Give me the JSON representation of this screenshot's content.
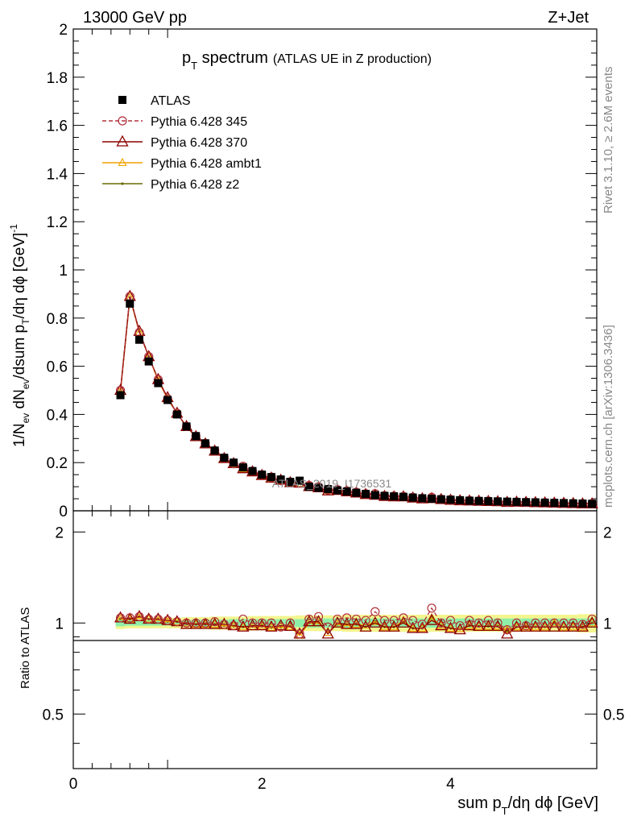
{
  "header": {
    "left": "13000 GeV pp",
    "right": "Z+Jet"
  },
  "side_labels": {
    "rivet": "Rivet 3.1.10, ≥ 2.6M events",
    "mcplots": "mcplots.cern.ch [arXiv:1306.3436]"
  },
  "watermark": "ATLAS_2019_I1736531",
  "colors": {
    "atlas": "#000000",
    "p345": "#b2323c",
    "p370": "#8b0000",
    "ambt1": "#f2a200",
    "z2": "#6b6b00",
    "band_inner": "#8ef0a8",
    "band_outer": "#f4f58e"
  },
  "chart_data": [
    {
      "type": "line",
      "title_main": "p",
      "title_sub": "T",
      "title_rest": " spectrum",
      "title_note": "(ATLAS UE in Z production)",
      "ylabel_parts": [
        "1/N",
        "ev",
        " dN",
        "ev",
        "/dsum p",
        "T",
        "/dη dϕ  [GeV]",
        "-1"
      ],
      "xlim": [
        0,
        5.55
      ],
      "ylim": [
        0,
        2.0
      ],
      "yticks": [
        "0",
        "0.2",
        "0.4",
        "0.6",
        "0.8",
        "1",
        "1.2",
        "1.4",
        "1.6",
        "1.8",
        "2"
      ],
      "legend": [
        "ATLAS",
        "Pythia 6.428 345",
        "Pythia 6.428 370",
        "Pythia 6.428 ambt1",
        "Pythia 6.428 z2"
      ],
      "x": [
        0.5,
        0.6,
        0.7,
        0.8,
        0.9,
        1.0,
        1.1,
        1.2,
        1.3,
        1.4,
        1.5,
        1.6,
        1.7,
        1.8,
        1.9,
        2.0,
        2.1,
        2.2,
        2.3,
        2.4,
        2.5,
        2.6,
        2.7,
        2.8,
        2.9,
        3.0,
        3.1,
        3.2,
        3.3,
        3.4,
        3.5,
        3.6,
        3.7,
        3.8,
        3.9,
        4.0,
        4.1,
        4.2,
        4.3,
        4.4,
        4.5,
        4.6,
        4.7,
        4.8,
        4.9,
        5.0,
        5.1,
        5.2,
        5.3,
        5.4,
        5.5
      ],
      "series": [
        {
          "name": "ATLAS",
          "values": [
            0.48,
            0.86,
            0.71,
            0.62,
            0.53,
            0.46,
            0.4,
            0.35,
            0.31,
            0.28,
            0.25,
            0.22,
            0.2,
            0.18,
            0.165,
            0.15,
            0.14,
            0.13,
            0.12,
            0.125,
            0.1,
            0.095,
            0.09,
            0.085,
            0.08,
            0.075,
            0.07,
            0.065,
            0.062,
            0.06,
            0.058,
            0.055,
            0.052,
            0.05,
            0.048,
            0.046,
            0.044,
            0.042,
            0.041,
            0.04,
            0.039,
            0.038,
            0.037,
            0.036,
            0.035,
            0.034,
            0.033,
            0.032,
            0.031,
            0.03,
            0.029
          ]
        },
        {
          "name": "Pythia 6.428 345",
          "values": [
            0.5,
            0.89,
            0.74,
            0.64,
            0.545,
            0.465,
            0.405,
            0.35,
            0.31,
            0.28,
            0.25,
            0.22,
            0.195,
            0.185,
            0.165,
            0.15,
            0.14,
            0.125,
            0.12,
            0.115,
            0.105,
            0.1,
            0.087,
            0.088,
            0.083,
            0.077,
            0.071,
            0.071,
            0.063,
            0.061,
            0.06,
            0.056,
            0.051,
            0.056,
            0.048,
            0.047,
            0.043,
            0.043,
            0.041,
            0.041,
            0.039,
            0.036,
            0.037,
            0.035,
            0.035,
            0.034,
            0.033,
            0.032,
            0.031,
            0.03,
            0.03
          ]
        },
        {
          "name": "Pythia 6.428 370",
          "values": [
            0.5,
            0.89,
            0.745,
            0.64,
            0.545,
            0.47,
            0.405,
            0.35,
            0.308,
            0.278,
            0.248,
            0.217,
            0.196,
            0.175,
            0.162,
            0.147,
            0.136,
            0.127,
            0.117,
            0.115,
            0.101,
            0.096,
            0.083,
            0.085,
            0.079,
            0.074,
            0.068,
            0.065,
            0.06,
            0.058,
            0.058,
            0.053,
            0.05,
            0.051,
            0.047,
            0.044,
            0.042,
            0.041,
            0.04,
            0.039,
            0.038,
            0.035,
            0.036,
            0.035,
            0.034,
            0.033,
            0.032,
            0.031,
            0.03,
            0.029,
            0.029
          ]
        },
        {
          "name": "Pythia 6.428 ambt1",
          "values": [
            0.495,
            0.885,
            0.74,
            0.64,
            0.54,
            0.465,
            0.405,
            0.35,
            0.306,
            0.277,
            0.247,
            0.216,
            0.195,
            0.174,
            0.16,
            0.146,
            0.135,
            0.126,
            0.116,
            0.114,
            0.1,
            0.095,
            0.084,
            0.084,
            0.078,
            0.074,
            0.069,
            0.066,
            0.06,
            0.058,
            0.059,
            0.053,
            0.05,
            0.052,
            0.047,
            0.044,
            0.042,
            0.041,
            0.04,
            0.039,
            0.038,
            0.036,
            0.036,
            0.035,
            0.034,
            0.033,
            0.033,
            0.031,
            0.03,
            0.029,
            0.029
          ]
        },
        {
          "name": "Pythia 6.428 z2",
          "values": [
            0.495,
            0.885,
            0.745,
            0.64,
            0.545,
            0.465,
            0.405,
            0.35,
            0.307,
            0.278,
            0.247,
            0.216,
            0.195,
            0.175,
            0.161,
            0.147,
            0.135,
            0.126,
            0.117,
            0.115,
            0.1,
            0.095,
            0.084,
            0.084,
            0.079,
            0.074,
            0.068,
            0.066,
            0.06,
            0.058,
            0.059,
            0.053,
            0.05,
            0.052,
            0.047,
            0.044,
            0.042,
            0.041,
            0.04,
            0.039,
            0.038,
            0.036,
            0.036,
            0.035,
            0.034,
            0.033,
            0.033,
            0.031,
            0.03,
            0.029,
            0.029
          ]
        }
      ]
    },
    {
      "type": "line",
      "ylabel": "Ratio to ATLAS",
      "xlabel_parts": [
        "sum p",
        "T",
        "/dη dϕ [GeV]"
      ],
      "xlim": [
        0,
        5.55
      ],
      "ylim": [
        0.33,
        2.35
      ],
      "xticks": [
        0,
        2,
        4
      ],
      "yticks_left": [
        0.5,
        1,
        2
      ],
      "yticks_left_labels": [
        "0.5",
        "1",
        "2"
      ],
      "yticks_right_labels": [
        "0.5",
        "1",
        "2"
      ],
      "x": [
        0.5,
        0.6,
        0.7,
        0.8,
        0.9,
        1.0,
        1.1,
        1.2,
        1.3,
        1.4,
        1.5,
        1.6,
        1.7,
        1.8,
        1.9,
        2.0,
        2.1,
        2.2,
        2.3,
        2.4,
        2.5,
        2.6,
        2.7,
        2.8,
        2.9,
        3.0,
        3.1,
        3.2,
        3.3,
        3.4,
        3.5,
        3.6,
        3.7,
        3.8,
        3.9,
        4.0,
        4.1,
        4.2,
        4.3,
        4.4,
        4.5,
        4.6,
        4.7,
        4.8,
        4.9,
        5.0,
        5.1,
        5.2,
        5.3,
        5.4,
        5.5
      ],
      "band_inner": [
        0.025,
        0.02,
        0.02,
        0.02,
        0.02,
        0.02,
        0.02,
        0.02,
        0.025,
        0.025,
        0.025,
        0.025,
        0.03,
        0.03,
        0.03,
        0.03,
        0.03,
        0.03,
        0.03,
        0.03,
        0.035,
        0.035,
        0.035,
        0.035,
        0.035,
        0.035,
        0.035,
        0.035,
        0.035,
        0.035,
        0.035,
        0.035,
        0.035,
        0.035,
        0.035,
        0.035,
        0.035,
        0.035,
        0.035,
        0.035,
        0.035,
        0.035,
        0.035,
        0.035,
        0.035,
        0.035,
        0.035,
        0.035,
        0.035,
        0.035,
        0.035
      ],
      "band_outer": [
        0.045,
        0.04,
        0.04,
        0.04,
        0.04,
        0.04,
        0.04,
        0.045,
        0.045,
        0.045,
        0.05,
        0.05,
        0.05,
        0.05,
        0.055,
        0.055,
        0.055,
        0.055,
        0.055,
        0.06,
        0.06,
        0.06,
        0.06,
        0.06,
        0.065,
        0.065,
        0.065,
        0.065,
        0.065,
        0.065,
        0.065,
        0.065,
        0.065,
        0.065,
        0.065,
        0.065,
        0.065,
        0.065,
        0.065,
        0.065,
        0.065,
        0.065,
        0.065,
        0.065,
        0.065,
        0.065,
        0.065,
        0.065,
        0.065,
        0.07,
        0.07
      ],
      "series": [
        {
          "name": "Pythia 6.428 345",
          "values": [
            1.04,
            1.04,
            1.05,
            1.03,
            1.03,
            1.02,
            1.01,
            1.0,
            1.0,
            1.0,
            1.01,
            0.99,
            0.98,
            1.03,
            1.0,
            1.0,
            1.0,
            0.97,
            1.0,
            0.92,
            1.03,
            1.05,
            0.97,
            1.03,
            1.04,
            1.03,
            1.02,
            1.09,
            1.02,
            1.02,
            1.04,
            1.02,
            0.99,
            1.12,
            1.0,
            1.02,
            0.98,
            1.02,
            1.0,
            1.02,
            1.0,
            0.95,
            1.0,
            0.98,
            1.0,
            1.0,
            1.0,
            1.0,
            1.0,
            0.99,
            1.03
          ]
        },
        {
          "name": "Pythia 6.428 370",
          "values": [
            1.04,
            1.03,
            1.05,
            1.03,
            1.03,
            1.02,
            1.01,
            0.99,
            0.99,
            0.99,
            0.99,
            0.99,
            0.98,
            0.97,
            0.98,
            0.98,
            0.97,
            0.98,
            0.975,
            0.92,
            1.01,
            1.01,
            0.92,
            1.0,
            0.99,
            0.99,
            0.97,
            1.0,
            0.97,
            0.97,
            1.0,
            0.96,
            0.96,
            1.02,
            0.98,
            0.96,
            0.95,
            0.98,
            0.975,
            0.975,
            0.975,
            0.92,
            0.97,
            0.97,
            0.97,
            0.97,
            0.97,
            0.97,
            0.97,
            0.97,
            1.0
          ]
        },
        {
          "name": "Pythia 6.428 ambt1",
          "values": [
            1.03,
            1.03,
            1.04,
            1.03,
            1.02,
            1.01,
            1.01,
            1.0,
            0.99,
            0.99,
            0.99,
            0.98,
            0.975,
            0.97,
            0.97,
            0.975,
            0.965,
            0.97,
            0.97,
            0.91,
            1.0,
            1.0,
            0.93,
            0.99,
            0.98,
            0.99,
            0.985,
            1.01,
            0.97,
            0.97,
            1.02,
            0.96,
            0.96,
            1.04,
            0.98,
            0.96,
            0.955,
            0.98,
            0.975,
            0.975,
            0.975,
            0.95,
            0.97,
            0.97,
            0.97,
            0.97,
            1.0,
            0.97,
            0.97,
            0.97,
            1.0
          ]
        },
        {
          "name": "Pythia 6.428 z2",
          "values": [
            1.03,
            1.03,
            1.05,
            1.03,
            1.03,
            1.01,
            1.01,
            1.0,
            0.99,
            0.99,
            0.99,
            0.98,
            0.975,
            0.97,
            0.975,
            0.98,
            0.965,
            0.97,
            0.975,
            0.92,
            1.0,
            1.0,
            0.93,
            0.99,
            0.985,
            0.99,
            0.97,
            1.01,
            0.97,
            0.97,
            1.01,
            0.96,
            0.96,
            1.04,
            0.98,
            0.96,
            0.955,
            0.98,
            0.975,
            0.975,
            0.975,
            0.94,
            0.97,
            0.97,
            0.97,
            0.97,
            1.0,
            0.97,
            0.97,
            0.97,
            1.0
          ]
        }
      ]
    }
  ]
}
